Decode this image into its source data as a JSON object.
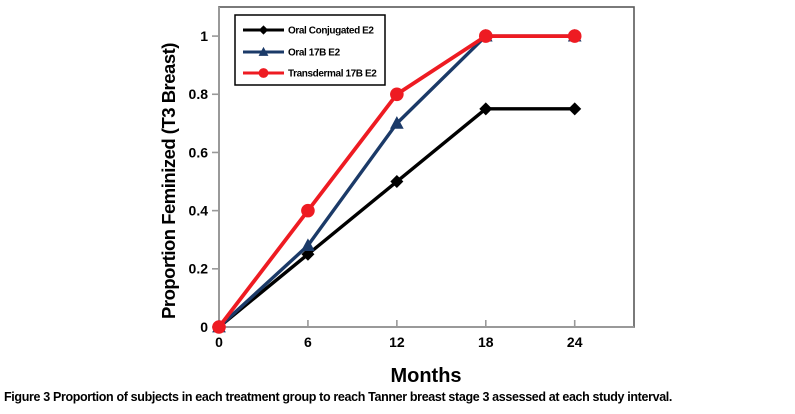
{
  "figure": {
    "caption_label": "Figure 3",
    "caption_text": "Proportion of subjects in each treatment group to reach Tanner breast stage 3 assessed at each study interval."
  },
  "chart_data": {
    "type": "line",
    "title": "",
    "xlabel": "Months",
    "ylabel": "Proportion Feminized (T3 Breast)",
    "x": [
      0,
      6,
      12,
      18,
      24
    ],
    "xticks": [
      0,
      6,
      12,
      18,
      24
    ],
    "yticks": [
      0,
      0.2,
      0.4,
      0.6,
      0.8,
      1
    ],
    "xlim": [
      0,
      28
    ],
    "ylim": [
      0,
      1.1
    ],
    "grid": false,
    "legend_position": "top-left",
    "colors": {
      "axis_gray": "#999999",
      "border_gray": "#595959"
    },
    "series": [
      {
        "name": "Oral Conjugated E2",
        "marker": "diamond",
        "color": "#000000",
        "values": [
          0,
          0.25,
          0.5,
          0.75,
          0.75
        ]
      },
      {
        "name": "Oral 17B E2",
        "marker": "triangle",
        "color": "#1B3A68",
        "values": [
          0,
          0.28,
          0.7,
          1,
          1
        ]
      },
      {
        "name": "Transdermal 17B E2",
        "marker": "circle",
        "color": "#EE1B22",
        "values": [
          0,
          0.4,
          0.8,
          1,
          1
        ]
      }
    ]
  }
}
